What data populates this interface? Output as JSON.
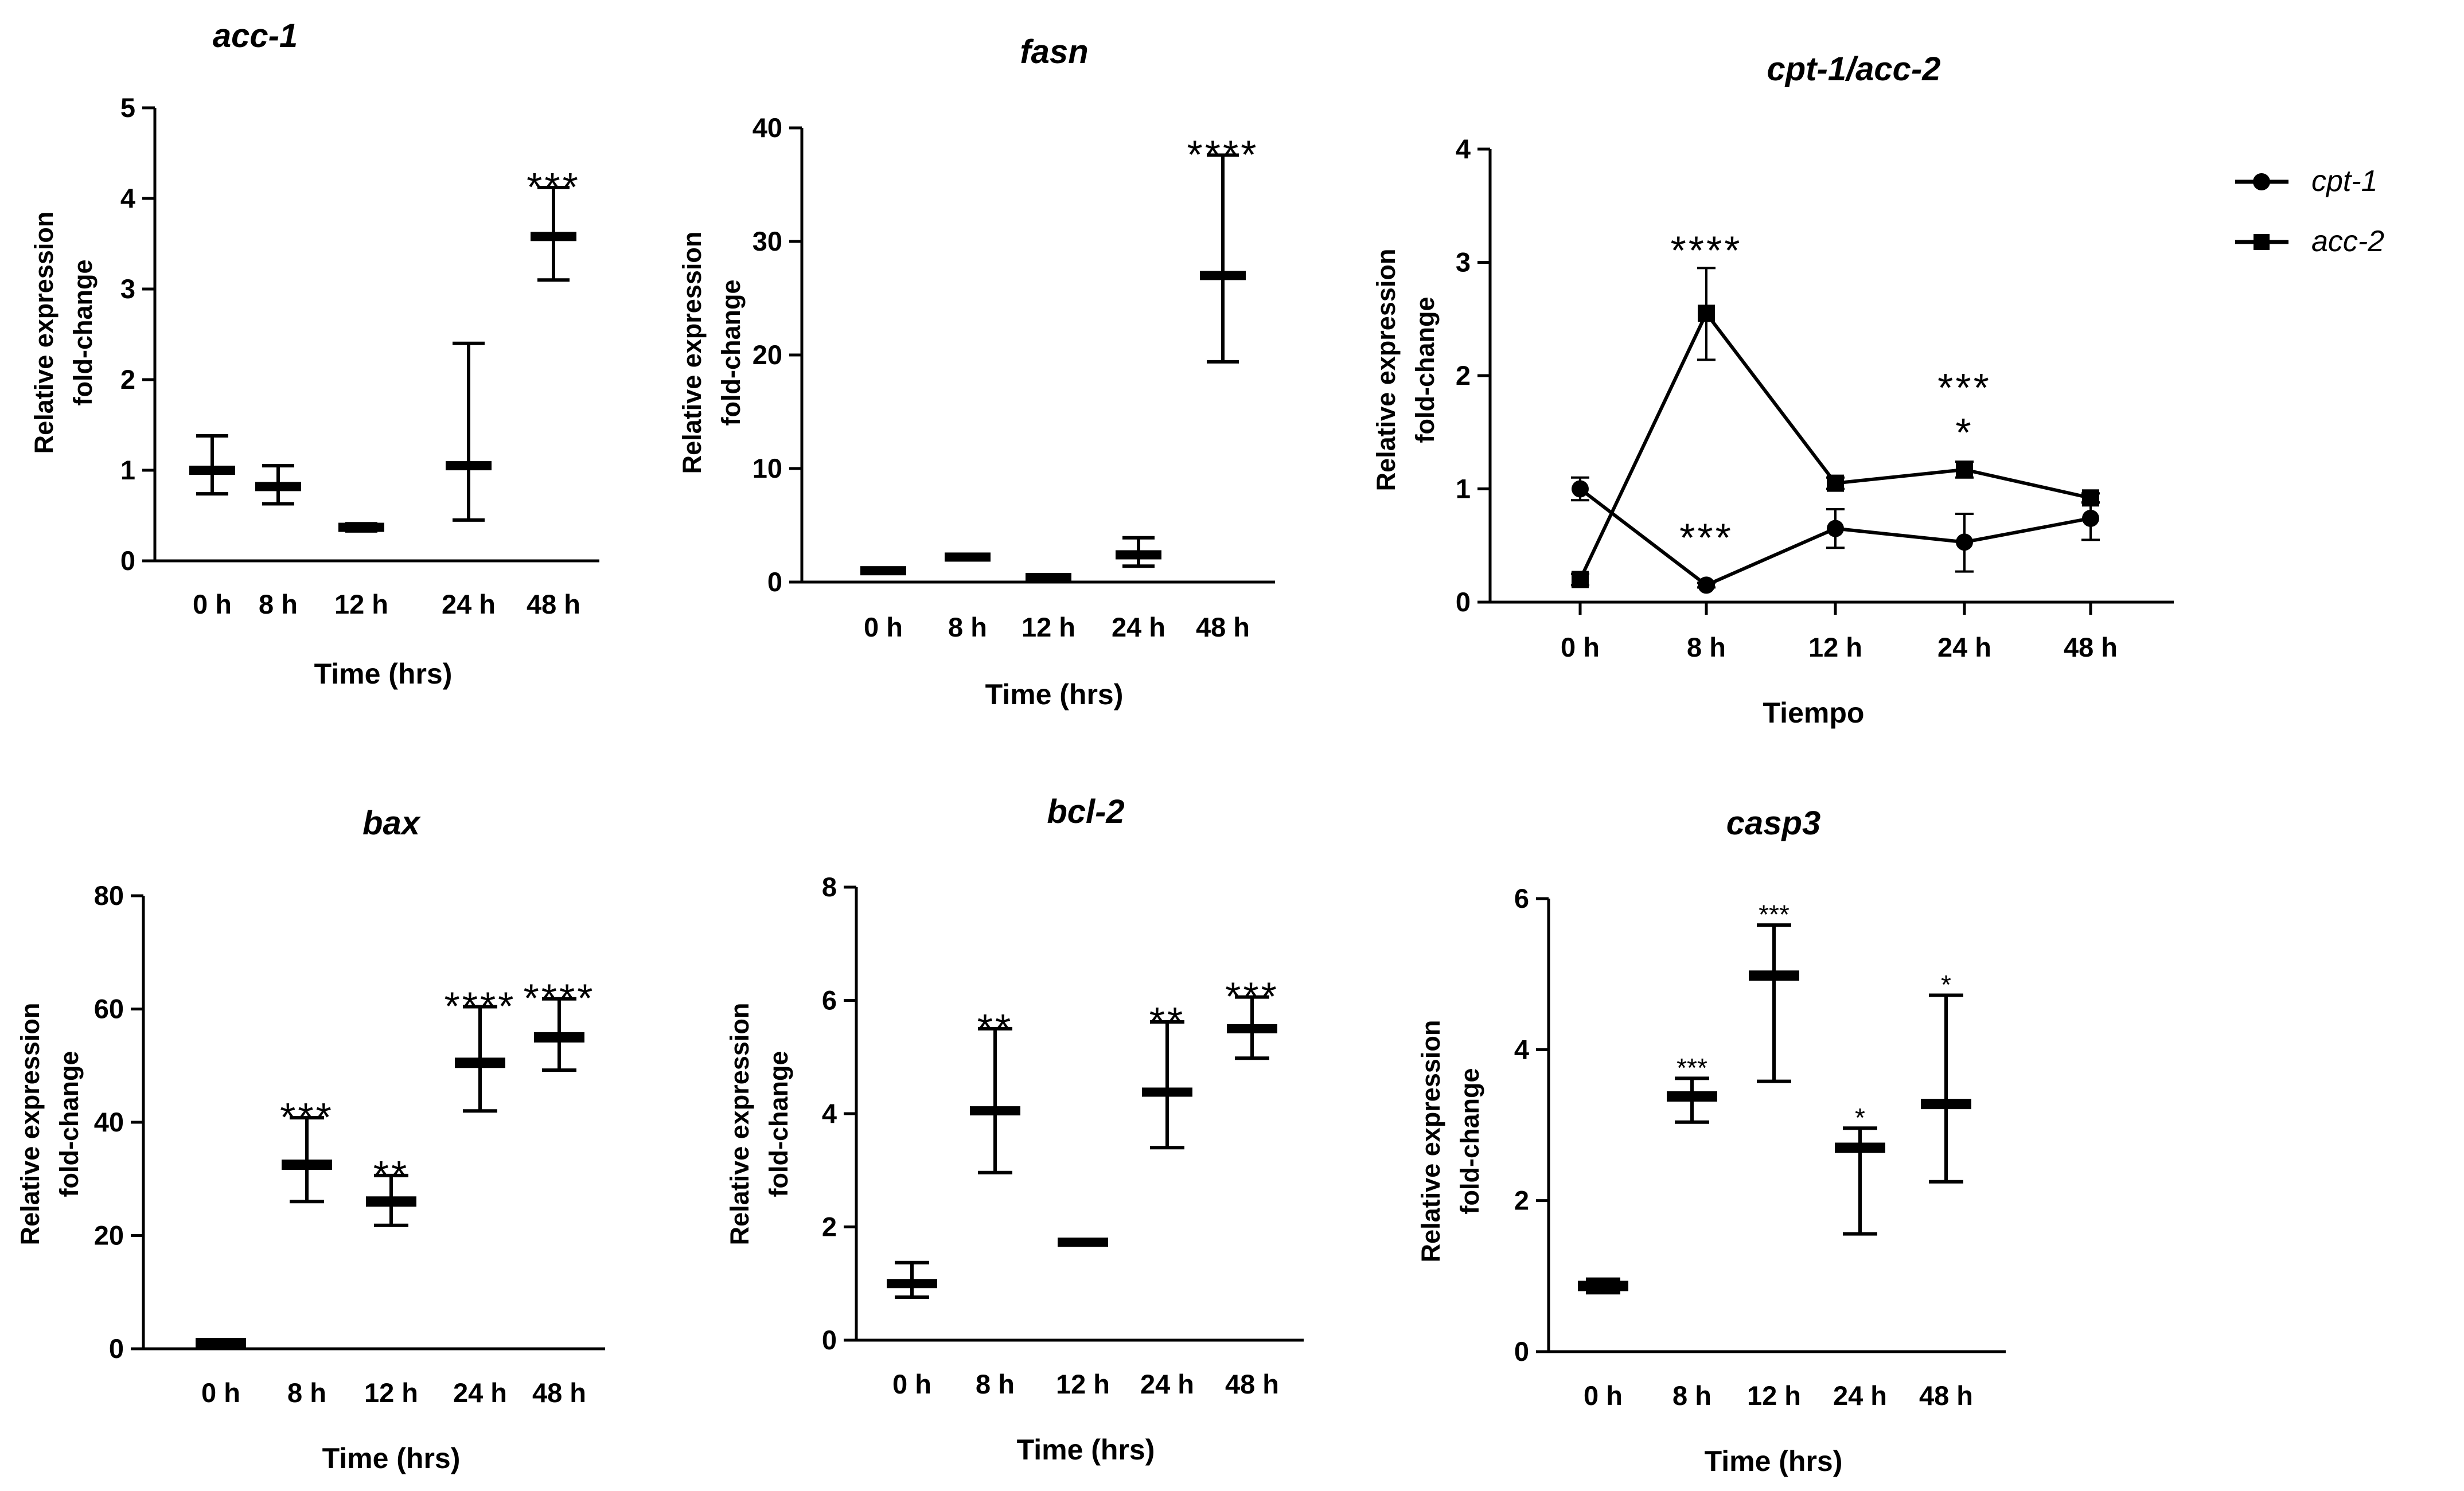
{
  "figure": {
    "legend": {
      "entries": [
        {
          "label": "cpt-1",
          "marker": "circle"
        },
        {
          "label": "acc-2",
          "marker": "square"
        }
      ]
    }
  },
  "chart_data": [
    {
      "id": "acc1",
      "type": "bar",
      "title": "acc-1",
      "xlabel": "Time (hrs)",
      "ylabel": [
        "Relative expression",
        "fold-change"
      ],
      "ylim": [
        0,
        5
      ],
      "yticks": [
        0,
        1,
        2,
        3,
        4,
        5
      ],
      "categories": [
        "0 h",
        "8 h",
        "12 h",
        "24 h",
        "48 h"
      ],
      "series": [
        {
          "name": "acc-1",
          "mean": [
            1.0,
            0.82,
            0.37,
            1.05,
            3.58
          ],
          "low": [
            0.74,
            0.63,
            0.33,
            0.45,
            3.1
          ],
          "high": [
            1.38,
            1.05,
            0.41,
            2.4,
            4.12
          ],
          "sig": [
            "",
            "",
            "",
            "",
            "***"
          ]
        }
      ],
      "sig_size": "large"
    },
    {
      "id": "fasn",
      "type": "bar",
      "title": "fasn",
      "xlabel": "Time (hrs)",
      "ylabel": [
        "Relative expression",
        "fold-change"
      ],
      "ylim": [
        0,
        40
      ],
      "yticks": [
        0,
        10,
        20,
        30,
        40
      ],
      "categories": [
        "0 h",
        "8 h",
        "12 h",
        "24 h",
        "48 h"
      ],
      "series": [
        {
          "name": "fasn",
          "mean": [
            1.0,
            2.2,
            0.4,
            2.4,
            27.0
          ],
          "low": [
            0.8,
            2.0,
            0.3,
            1.4,
            19.4
          ],
          "high": [
            1.2,
            2.4,
            0.5,
            3.9,
            37.6
          ],
          "sig": [
            "",
            "",
            "",
            "",
            "****"
          ]
        }
      ],
      "sig_size": "large"
    },
    {
      "id": "cpt1acc2",
      "type": "line",
      "title": "cpt-1/acc-2",
      "xlabel": "Tiempo",
      "ylabel": [
        "Relative expression",
        "fold-change"
      ],
      "ylim": [
        0,
        4
      ],
      "yticks": [
        0,
        1,
        2,
        3,
        4
      ],
      "categories": [
        "0 h",
        "8 h",
        "12 h",
        "24 h",
        "48 h"
      ],
      "series": [
        {
          "name": "cpt-1",
          "marker": "circle",
          "mean": [
            1.0,
            0.15,
            0.65,
            0.53,
            0.74
          ],
          "low": [
            0.9,
            0.13,
            0.48,
            0.27,
            0.55
          ],
          "high": [
            1.1,
            0.17,
            0.82,
            0.78,
            0.88
          ],
          "sig": [
            "",
            "***",
            "",
            "*",
            ""
          ]
        },
        {
          "name": "acc-2",
          "marker": "square",
          "mean": [
            0.2,
            2.55,
            1.05,
            1.17,
            0.92
          ],
          "low": [
            0.15,
            2.14,
            1.0,
            1.1,
            0.88
          ],
          "high": [
            0.25,
            2.95,
            1.1,
            1.24,
            0.96
          ],
          "sig": [
            "",
            "****",
            "",
            "***",
            ""
          ]
        }
      ],
      "legend": "right",
      "sig_size": "large"
    },
    {
      "id": "bax",
      "type": "bar",
      "title": "bax",
      "xlabel": "Time (hrs)",
      "ylabel": [
        "Relative expression",
        "fold-change"
      ],
      "ylim": [
        0,
        80
      ],
      "yticks": [
        0,
        20,
        40,
        60,
        80
      ],
      "categories": [
        "0 h",
        "8 h",
        "12 h",
        "24 h",
        "48 h"
      ],
      "series": [
        {
          "name": "bax",
          "mean": [
            1.0,
            32.5,
            26.0,
            50.5,
            55.0
          ],
          "low": [
            0.5,
            26.0,
            21.8,
            42.0,
            49.2
          ],
          "high": [
            1.5,
            40.8,
            30.6,
            60.4,
            61.8
          ],
          "sig": [
            "",
            "***",
            "**",
            "****",
            "****"
          ]
        }
      ],
      "sig_size": "large"
    },
    {
      "id": "bcl2",
      "type": "bar",
      "title": "bcl-2",
      "xlabel": "Time (hrs)",
      "ylabel": [
        "Relative expression",
        "fold-change"
      ],
      "ylim": [
        0,
        8
      ],
      "yticks": [
        0,
        2,
        4,
        6,
        8
      ],
      "categories": [
        "0 h",
        "8 h",
        "12 h",
        "24 h",
        "48 h"
      ],
      "series": [
        {
          "name": "bcl-2",
          "mean": [
            1.0,
            4.05,
            1.73,
            4.38,
            5.5
          ],
          "low": [
            0.76,
            2.96,
            1.7,
            3.4,
            4.98
          ],
          "high": [
            1.37,
            5.5,
            1.77,
            5.62,
            6.06
          ],
          "sig": [
            "",
            "**",
            "",
            "**",
            "***"
          ]
        }
      ],
      "sig_size": "large"
    },
    {
      "id": "casp3",
      "type": "bar",
      "title": "casp3",
      "xlabel": "Time (hrs)",
      "ylabel": [
        "Relative expression",
        "fold-change"
      ],
      "ylim": [
        0,
        6
      ],
      "yticks": [
        0,
        2,
        4,
        6
      ],
      "categories": [
        "0 h",
        "8 h",
        "12 h",
        "24 h",
        "48 h"
      ],
      "series": [
        {
          "name": "casp3",
          "mean": [
            0.87,
            3.38,
            4.98,
            2.7,
            3.28
          ],
          "low": [
            0.78,
            3.04,
            3.58,
            1.56,
            2.25
          ],
          "high": [
            0.96,
            3.62,
            5.65,
            2.96,
            4.72
          ],
          "sig": [
            "",
            "***",
            "***",
            "*",
            "*"
          ]
        }
      ],
      "sig_size": "small"
    }
  ]
}
